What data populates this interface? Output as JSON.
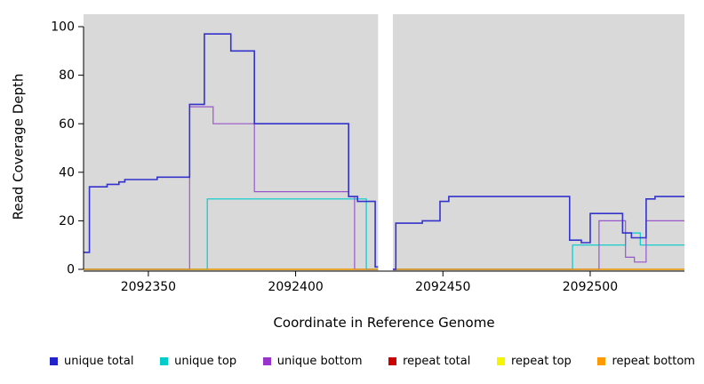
{
  "chart_data": {
    "type": "line",
    "title": "",
    "xlabel": "Coordinate in Reference Genome",
    "ylabel": "Read Coverage Depth",
    "xlim": [
      2092328,
      2092532
    ],
    "ylim": [
      0,
      100
    ],
    "x_tick_labels": [
      "2092350",
      "2092400",
      "2092450",
      "2092500"
    ],
    "x_tick_values": [
      2092350,
      2092400,
      2092450,
      2092500
    ],
    "y_tick_labels": [
      "0",
      "20",
      "40",
      "60",
      "80",
      "100"
    ],
    "y_tick_values": [
      0,
      20,
      40,
      60,
      80,
      100
    ],
    "grid": false,
    "interpolation": "step-after",
    "plot_background": "#d9d9d9",
    "gap_band": {
      "from": 2092428,
      "to": 2092433,
      "color": "#ffffff"
    },
    "legend_position": "bottom",
    "series": [
      {
        "name": "unique total",
        "color": "#3333cc",
        "width": 1.6,
        "points": [
          [
            2092328,
            7
          ],
          [
            2092330,
            34
          ],
          [
            2092336,
            35
          ],
          [
            2092340,
            36
          ],
          [
            2092342,
            37
          ],
          [
            2092353,
            38
          ],
          [
            2092364,
            68
          ],
          [
            2092369,
            97
          ],
          [
            2092378,
            90
          ],
          [
            2092386,
            60
          ],
          [
            2092418,
            30
          ],
          [
            2092421,
            28
          ],
          [
            2092427,
            1
          ],
          [
            2092431,
            0
          ],
          [
            2092434,
            19
          ],
          [
            2092443,
            20
          ],
          [
            2092449,
            28
          ],
          [
            2092452,
            30
          ],
          [
            2092493,
            12
          ],
          [
            2092497,
            11
          ],
          [
            2092500,
            23
          ],
          [
            2092511,
            15
          ],
          [
            2092514,
            13
          ],
          [
            2092519,
            29
          ],
          [
            2092522,
            30
          ]
        ]
      },
      {
        "name": "unique top",
        "color": "#00cdcd",
        "width": 1.2,
        "points": [
          [
            2092328,
            0
          ],
          [
            2092370,
            29
          ],
          [
            2092424,
            0
          ],
          [
            2092494,
            10
          ],
          [
            2092512,
            15
          ],
          [
            2092517,
            10
          ]
        ]
      },
      {
        "name": "unique bottom",
        "color": "#9955cc",
        "width": 1.2,
        "points": [
          [
            2092328,
            0
          ],
          [
            2092364,
            67
          ],
          [
            2092372,
            60
          ],
          [
            2092386,
            32
          ],
          [
            2092418,
            30
          ],
          [
            2092420,
            0
          ],
          [
            2092503,
            20
          ],
          [
            2092512,
            5
          ],
          [
            2092515,
            3
          ],
          [
            2092519,
            20
          ]
        ]
      },
      {
        "name": "repeat total",
        "color": "#cc2222",
        "width": 1.2,
        "points": [
          [
            2092328,
            0
          ]
        ]
      },
      {
        "name": "repeat top",
        "color": "#eded00",
        "width": 1.2,
        "points": [
          [
            2092328,
            0
          ]
        ]
      },
      {
        "name": "repeat bottom",
        "color": "#ee9900",
        "width": 1.2,
        "points": [
          [
            2092328,
            0
          ]
        ]
      }
    ],
    "draw_order": [
      3,
      4,
      1,
      2,
      5,
      0
    ]
  },
  "legend": {
    "items": [
      {
        "label": "unique total",
        "color": "#2222cc"
      },
      {
        "label": "unique top",
        "color": "#00cccc"
      },
      {
        "label": "unique bottom",
        "color": "#9933cc"
      },
      {
        "label": "repeat total",
        "color": "#cc0000"
      },
      {
        "label": "repeat top",
        "color": "#f5f500"
      },
      {
        "label": "repeat bottom",
        "color": "#ff9900"
      }
    ]
  }
}
